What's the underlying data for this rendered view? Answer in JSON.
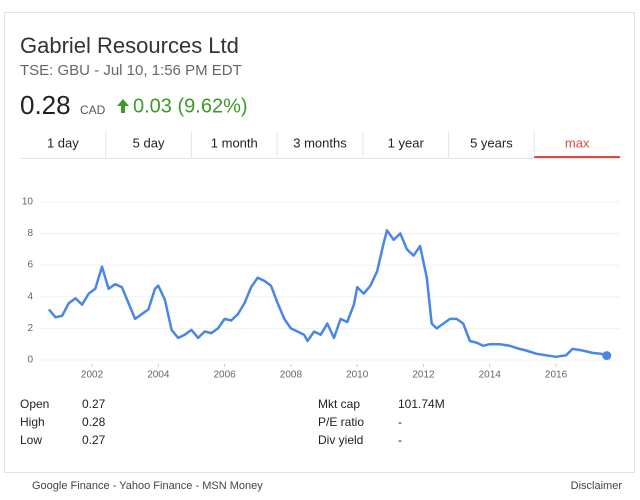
{
  "header": {
    "title": "Gabriel Resources Ltd",
    "subtitle": "TSE: GBU - Jul 10, 1:56 PM EDT",
    "price": "0.28",
    "currency": "CAD",
    "change": "0.03 (9.62%)"
  },
  "tabs": [
    "1 day",
    "5 day",
    "1 month",
    "3 months",
    "1 year",
    "5 years",
    "max"
  ],
  "active_tab": 6,
  "chart_data": {
    "type": "line",
    "x": [
      2000.7,
      2000.9,
      2001.1,
      2001.3,
      2001.5,
      2001.7,
      2001.9,
      2002.1,
      2002.3,
      2002.5,
      2002.7,
      2002.9,
      2003.1,
      2003.3,
      2003.5,
      2003.7,
      2003.9,
      2004.0,
      2004.2,
      2004.4,
      2004.6,
      2004.8,
      2005.0,
      2005.2,
      2005.4,
      2005.6,
      2005.8,
      2006.0,
      2006.2,
      2006.4,
      2006.6,
      2006.8,
      2007.0,
      2007.2,
      2007.4,
      2007.6,
      2007.8,
      2007.9,
      2008.0,
      2008.2,
      2008.4,
      2008.5,
      2008.7,
      2008.9,
      2009.1,
      2009.3,
      2009.5,
      2009.7,
      2009.9,
      2010.0,
      2010.2,
      2010.4,
      2010.6,
      2010.8,
      2010.9,
      2011.1,
      2011.3,
      2011.5,
      2011.7,
      2011.9,
      2012.1,
      2012.25,
      2012.4,
      2012.6,
      2012.8,
      2013.0,
      2013.2,
      2013.4,
      2013.6,
      2013.8,
      2014.0,
      2014.3,
      2014.6,
      2014.9,
      2015.1,
      2015.4,
      2015.7,
      2016.0,
      2016.3,
      2016.5,
      2016.8,
      2017.1,
      2017.4,
      2017.53
    ],
    "series": [
      {
        "color": "#4a86e8",
        "values": [
          3.2,
          2.7,
          2.8,
          3.6,
          3.9,
          3.5,
          4.2,
          4.5,
          5.9,
          4.5,
          4.8,
          4.6,
          3.6,
          2.6,
          2.9,
          3.2,
          4.5,
          4.7,
          3.8,
          1.9,
          1.4,
          1.6,
          1.9,
          1.4,
          1.8,
          1.7,
          2.0,
          2.6,
          2.5,
          2.9,
          3.6,
          4.6,
          5.2,
          5.0,
          4.7,
          3.6,
          2.6,
          2.3,
          2.0,
          1.8,
          1.6,
          1.2,
          1.8,
          1.6,
          2.3,
          1.4,
          2.6,
          2.4,
          3.5,
          4.6,
          4.2,
          4.7,
          5.6,
          7.4,
          8.2,
          7.6,
          8.0,
          7.0,
          6.6,
          7.2,
          5.2,
          2.3,
          2.0,
          2.3,
          2.6,
          2.6,
          2.3,
          1.2,
          1.1,
          0.9,
          1.0,
          1.0,
          0.9,
          0.7,
          0.6,
          0.4,
          0.3,
          0.2,
          0.3,
          0.7,
          0.6,
          0.45,
          0.38,
          0.28
        ]
      }
    ],
    "xlim": [
      2000.43,
      2017.93
    ],
    "ylim": [
      0,
      11
    ],
    "xticks": [
      2002,
      2004,
      2006,
      2008,
      2010,
      2012,
      2014,
      2016
    ],
    "yticks": [
      0,
      2,
      4,
      6,
      8,
      10
    ],
    "grid": true
  },
  "stats": [
    {
      "label": "Open",
      "value": "0.27"
    },
    {
      "label": "High",
      "value": "0.28"
    },
    {
      "label": "Low",
      "value": "0.27"
    },
    {
      "label": "Mkt cap",
      "value": "101.74M"
    },
    {
      "label": "P/E ratio",
      "value": "-"
    },
    {
      "label": "Div yield",
      "value": "-"
    }
  ],
  "footer": {
    "sources": "Google Finance - Yahoo Finance - MSN Money",
    "disclaimer": "Disclaimer"
  }
}
